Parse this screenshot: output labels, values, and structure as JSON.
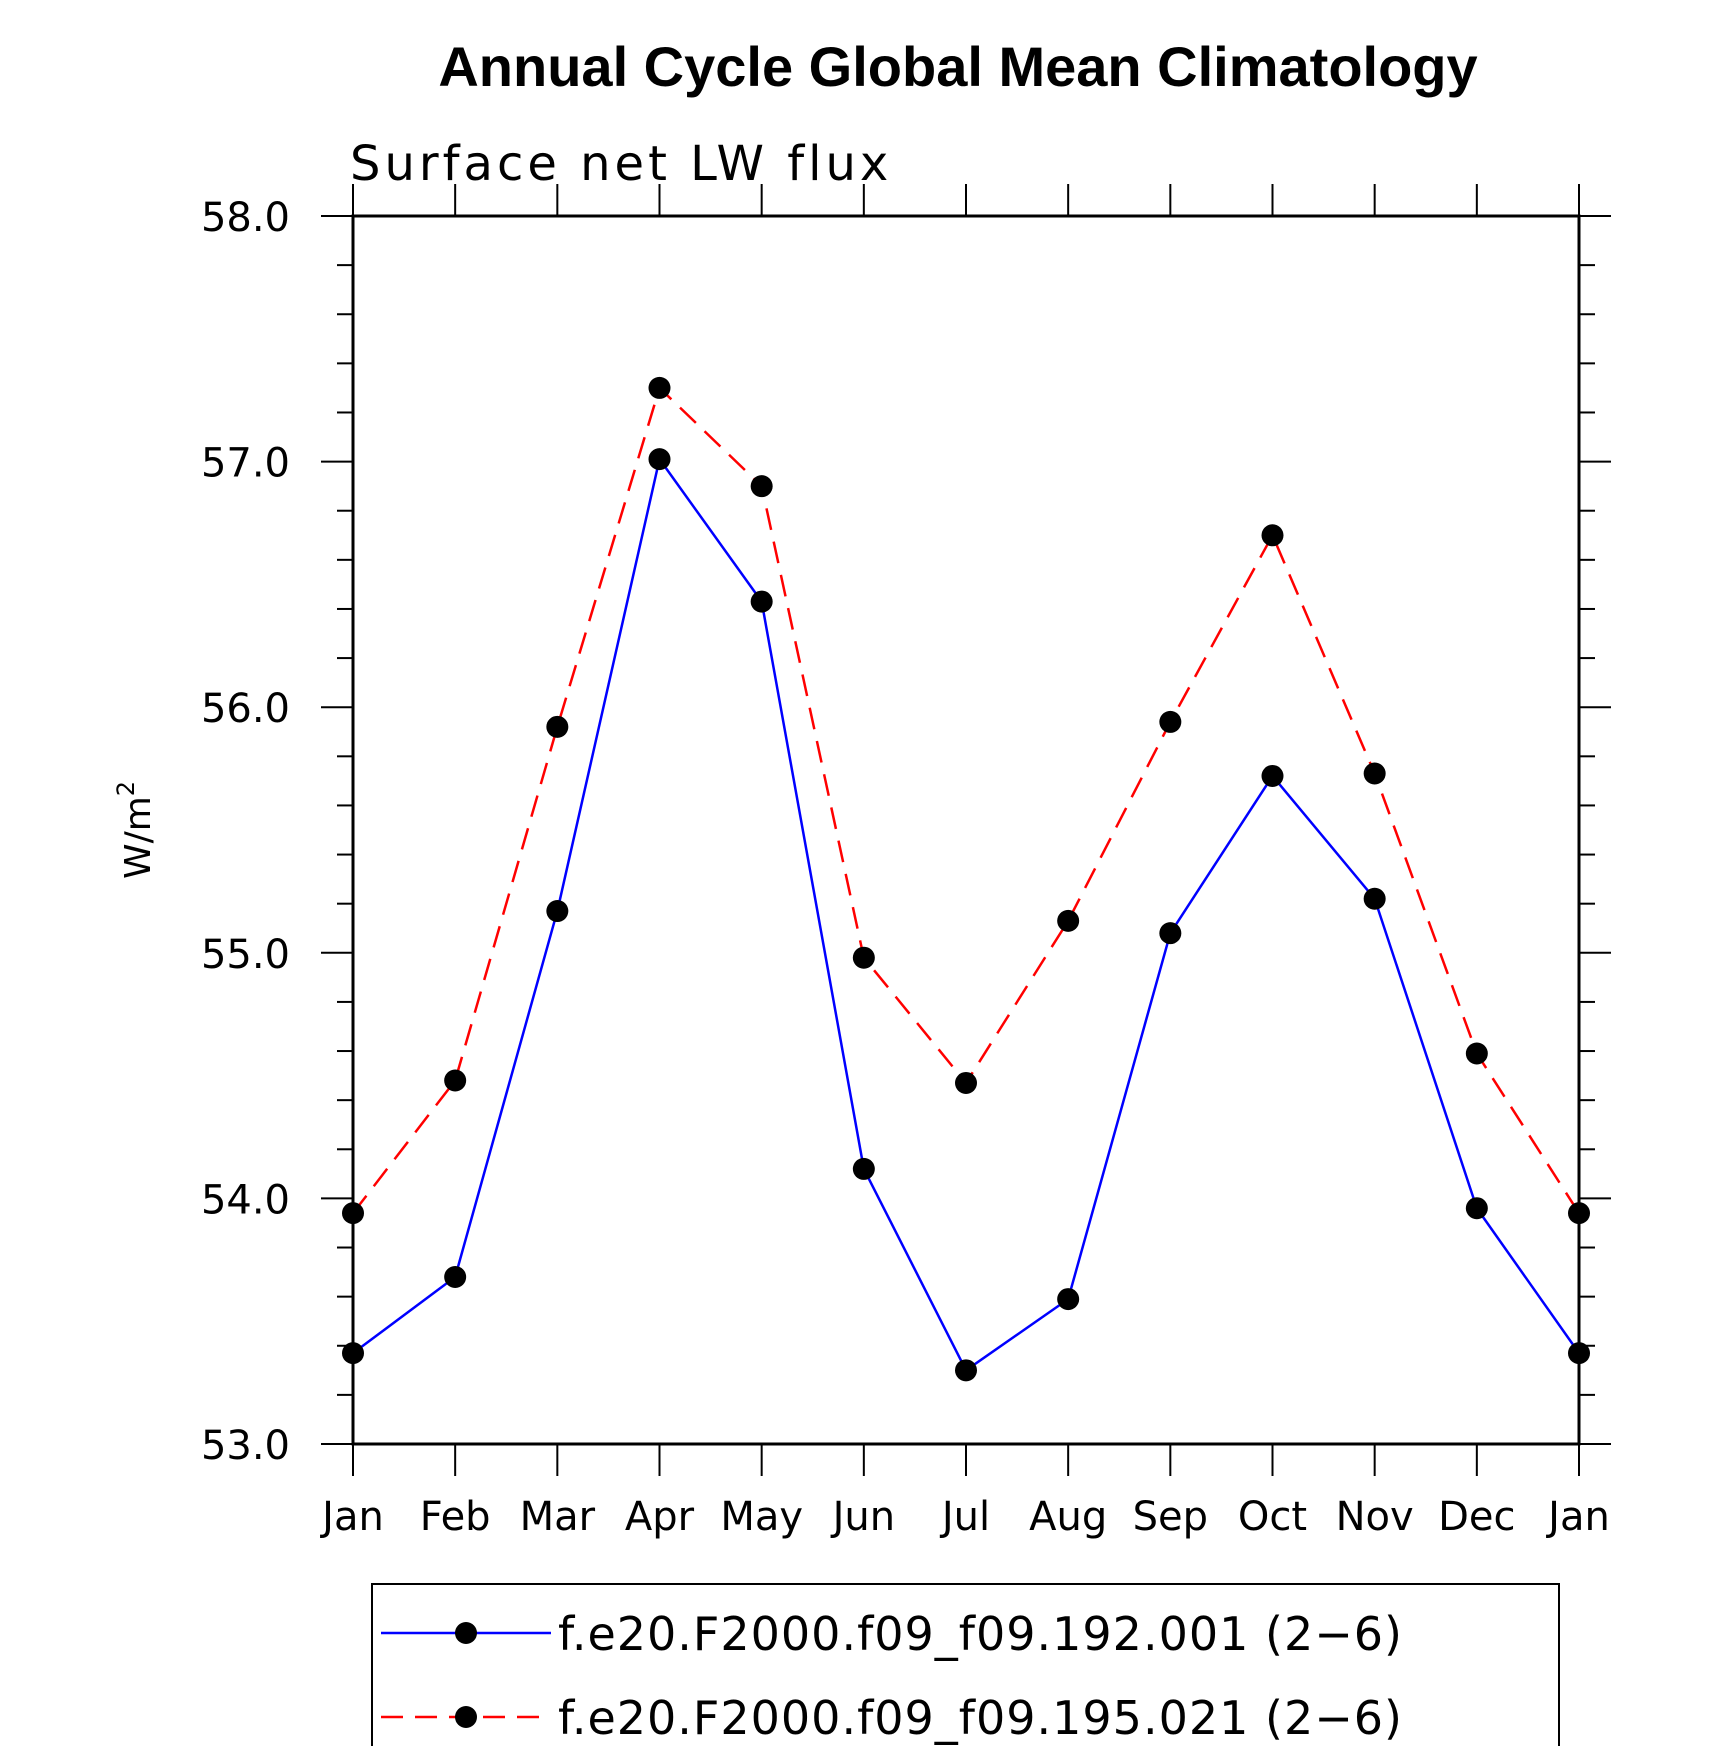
{
  "chart_data": {
    "type": "line",
    "title": "Annual Cycle Global Mean Climatology",
    "subtitle": "Surface net LW flux",
    "ylabel": "W/m",
    "ylabel_sup": "2",
    "ylim": [
      53.0,
      58.0
    ],
    "yticks": [
      "53.0",
      "54.0",
      "55.0",
      "56.0",
      "57.0",
      "58.0"
    ],
    "categories": [
      "Jan",
      "Feb",
      "Mar",
      "Apr",
      "May",
      "Jun",
      "Jul",
      "Aug",
      "Sep",
      "Oct",
      "Nov",
      "Dec",
      "Jan"
    ],
    "grid": false,
    "legend_position": "bottom",
    "series": [
      {
        "name": "f.e20.F2000.f09_f09.192.001 (2−6)",
        "color": "#0000ff",
        "dash": "solid",
        "values": [
          53.37,
          53.68,
          55.17,
          57.01,
          56.43,
          54.12,
          53.3,
          53.59,
          55.08,
          55.72,
          55.22,
          53.96,
          53.37
        ]
      },
      {
        "name": "f.e20.F2000.f09_f09.195.021 (2−6)",
        "color": "#ff0000",
        "dash": "dashed",
        "values": [
          53.94,
          54.48,
          55.92,
          57.3,
          56.9,
          54.98,
          54.47,
          55.13,
          55.94,
          56.7,
          55.73,
          54.59,
          53.94
        ]
      }
    ]
  }
}
